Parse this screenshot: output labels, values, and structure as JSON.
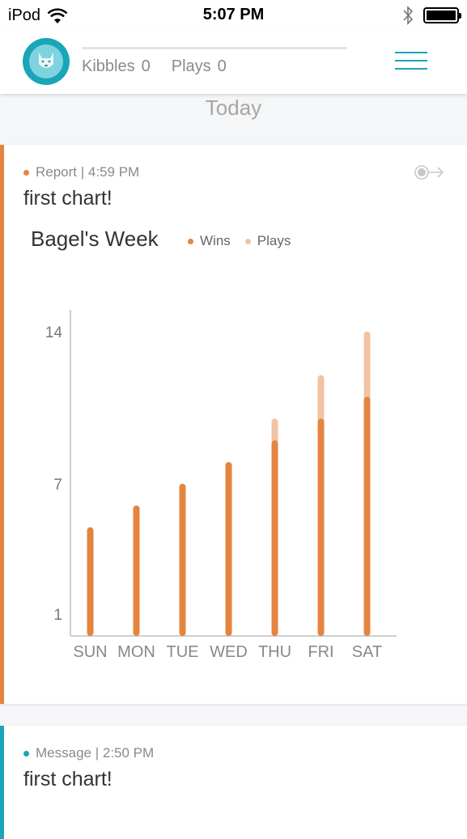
{
  "status_bar": {
    "carrier": "iPod",
    "time": "5:07 PM"
  },
  "header": {
    "kibbles_label": "Kibbles",
    "kibbles_value": "0",
    "plays_label": "Plays",
    "plays_value": "0"
  },
  "date_heading": "Today",
  "report_card": {
    "type_label": "Report",
    "time": "4:59 PM",
    "title": "first chart!",
    "accent_color": "#e5843f"
  },
  "message_card": {
    "type_label": "Message",
    "time": "2:50 PM",
    "title": "first chart!",
    "accent_color": "#1aa5b8"
  },
  "chart_data": {
    "type": "bar",
    "title": "Bagel's Week",
    "categories": [
      "SUN",
      "MON",
      "TUE",
      "WED",
      "THU",
      "FRI",
      "SAT"
    ],
    "series": [
      {
        "name": "Wins",
        "color": "#e5843f",
        "values": [
          5,
          6,
          7,
          8,
          9,
          10,
          11
        ]
      },
      {
        "name": "Plays",
        "color": "#f2c3a3",
        "values": [
          5,
          6,
          7,
          8,
          10,
          12,
          14
        ]
      }
    ],
    "yticks": [
      1,
      7,
      14
    ],
    "ylim": [
      0,
      15
    ],
    "legend_position": "top",
    "grid": false
  }
}
